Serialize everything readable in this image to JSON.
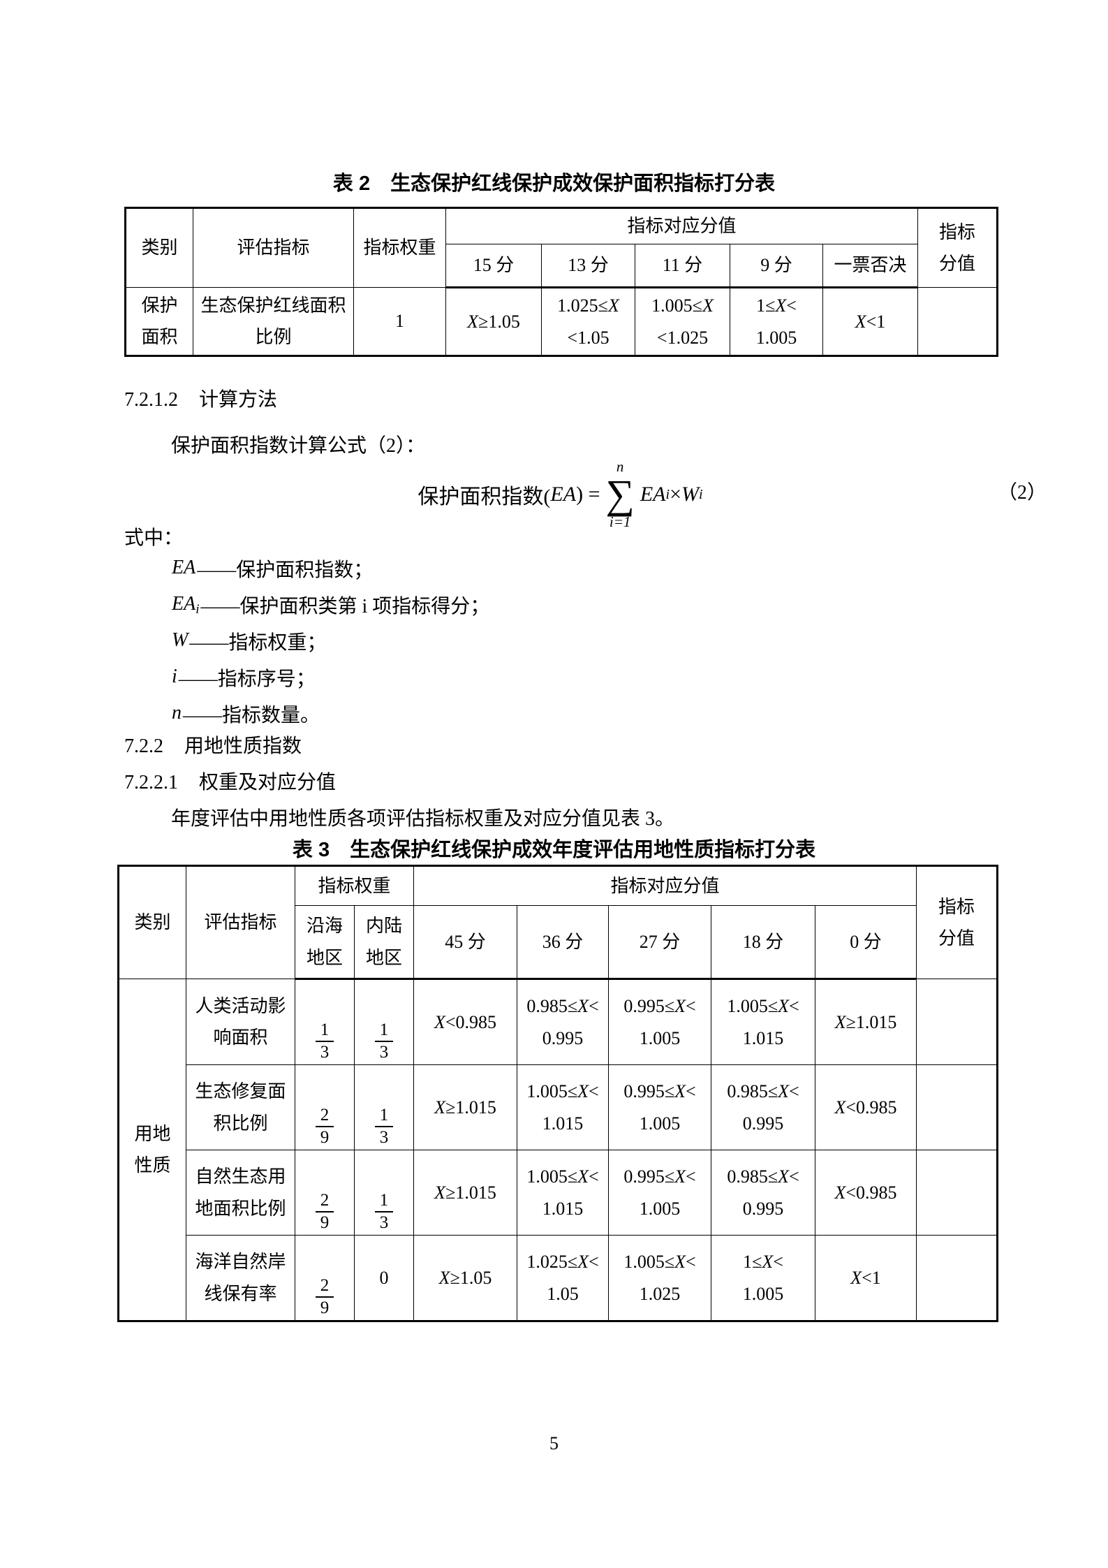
{
  "page_number": "5",
  "table2": {
    "caption": "表 2　生态保护红线保护成效保护面积指标打分表",
    "header": {
      "category": "类别",
      "indicator": "评估指标",
      "weight": "指标权重",
      "score_band": "指标对应分值",
      "final": "指标\n分值",
      "score_cols": [
        "15 分",
        "13 分",
        "11 分",
        "9 分",
        "一票否决"
      ]
    },
    "row": {
      "category": "保护\n面积",
      "indicator": "生态保护红线面积\n比例",
      "weight": "1",
      "s15": "X≥1.05",
      "s13": "1.025≤X\n<1.05",
      "s11": "1.005≤X\n<1.025",
      "s9": "1≤X<\n1.005",
      "veto": "X<1",
      "final": ""
    }
  },
  "section_7212": {
    "number": "7.2.1.2",
    "title": "计算方法"
  },
  "formula": {
    "intro": "保护面积指数计算公式（2）：",
    "lhs_text": "保护面积指数(",
    "lhs_var": "EA",
    "lhs_close": ") =",
    "upper": "n",
    "sigma": "∑",
    "lower": "i=1",
    "rhs_var1": "EA",
    "rhs_sub1": "i",
    "rhs_times": " × ",
    "rhs_var2": "W",
    "rhs_sub2": "i",
    "number": "（2）"
  },
  "where": {
    "lead": "式中：",
    "items": [
      {
        "symbol": "EA",
        "sub": "",
        "desc": "——保护面积指数；"
      },
      {
        "symbol": "EA",
        "sub": "i",
        "desc": "——保护面积类第 i 项指标得分；"
      },
      {
        "symbol": "W",
        "sub": "",
        "desc": "——指标权重；"
      },
      {
        "symbol": "i",
        "sub": "",
        "desc": "——指标序号；"
      },
      {
        "symbol": "n",
        "sub": "",
        "desc": "——指标数量。"
      }
    ]
  },
  "section_722": {
    "number": "7.2.2",
    "title": "用地性质指数"
  },
  "section_7221": {
    "number": "7.2.2.1",
    "title": "权重及对应分值"
  },
  "paragraph_7221": "年度评估中用地性质各项评估指标权重及对应分值见表 3。",
  "table3": {
    "caption": "表 3　生态保护红线保护成效年度评估用地性质指标打分表",
    "header": {
      "category": "类别",
      "indicator": "评估指标",
      "weight_band": "指标权重",
      "coastal": "沿海\n地区",
      "inland": "内陆\n地区",
      "score_band": "指标对应分值",
      "score_cols": [
        "45 分",
        "36 分",
        "27 分",
        "18 分",
        "0 分"
      ],
      "final": "指标\n分值"
    },
    "category": "用地\n性质",
    "rows": [
      {
        "indicator": "人类活动影\n响面积",
        "coastal_num": "1",
        "coastal_den": "3",
        "inland_num": "1",
        "inland_den": "3",
        "s45": "X<0.985",
        "s36": "0.985≤X<\n0.995",
        "s27": "0.995≤X<\n1.005",
        "s18": "1.005≤X<\n1.015",
        "s0": "X≥1.015",
        "final": ""
      },
      {
        "indicator": "生态修复面\n积比例",
        "coastal_num": "2",
        "coastal_den": "9",
        "inland_num": "1",
        "inland_den": "3",
        "s45": "X≥1.015",
        "s36": "1.005≤X<\n1.015",
        "s27": "0.995≤X<\n1.005",
        "s18": "0.985≤X<\n0.995",
        "s0": "X<0.985",
        "final": ""
      },
      {
        "indicator": "自然生态用\n地面积比例",
        "coastal_num": "2",
        "coastal_den": "9",
        "inland_num": "1",
        "inland_den": "3",
        "s45": "X≥1.015",
        "s36": "1.005≤X<\n1.015",
        "s27": "0.995≤X<\n1.005",
        "s18": "0.985≤X<\n0.995",
        "s0": "X<0.985",
        "final": ""
      },
      {
        "indicator": "海洋自然岸\n线保有率",
        "coastal_num": "2",
        "coastal_den": "9",
        "inland_value": "0",
        "s45": "X≥1.05",
        "s36": "1.025≤X<\n1.05",
        "s27": "1.005≤X<\n1.025",
        "s18": "1≤X<\n1.005",
        "s0": "X<1",
        "final": ""
      }
    ]
  }
}
